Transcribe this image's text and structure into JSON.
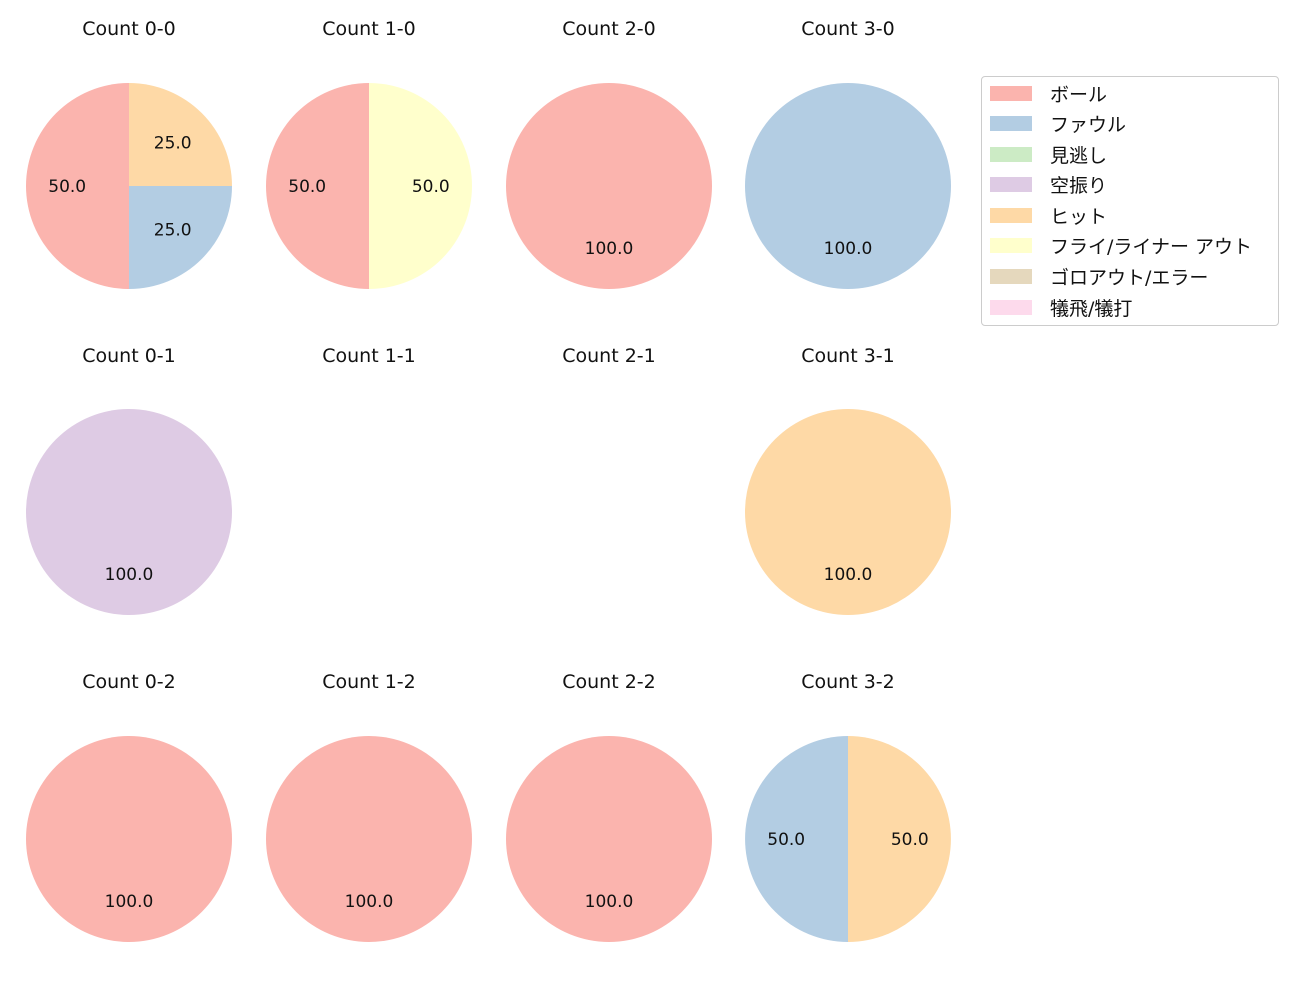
{
  "chart_data": {
    "type": "pie",
    "categories": [
      "ボール",
      "ファウル",
      "見逃し",
      "空振り",
      "ヒット",
      "フライ/ライナー アウト",
      "ゴロアウト/エラー",
      "犠飛/犠打"
    ],
    "colors": [
      "#fbb4ae",
      "#b3cde3",
      "#ccebc5",
      "#decbe4",
      "#fed9a6",
      "#ffffcc",
      "#e5d8bd",
      "#fddaec"
    ],
    "legend_position": "right",
    "charts": [
      {
        "title": "Count 0-0",
        "values": [
          50,
          25,
          0,
          0,
          25,
          0,
          0,
          0
        ],
        "labels": [
          "50.0",
          "25.0",
          "25.0"
        ]
      },
      {
        "title": "Count 1-0",
        "values": [
          50,
          0,
          0,
          0,
          0,
          50,
          0,
          0
        ],
        "labels": [
          "50.0",
          "50.0"
        ]
      },
      {
        "title": "Count 2-0",
        "values": [
          100,
          0,
          0,
          0,
          0,
          0,
          0,
          0
        ],
        "labels": [
          "100.0"
        ]
      },
      {
        "title": "Count 3-0",
        "values": [
          0,
          100,
          0,
          0,
          0,
          0,
          0,
          0
        ],
        "labels": [
          "100.0"
        ]
      },
      {
        "title": "Count 0-1",
        "values": [
          0,
          0,
          0,
          100,
          0,
          0,
          0,
          0
        ],
        "labels": [
          "100.0"
        ]
      },
      {
        "title": "Count 1-1",
        "values": [
          0,
          0,
          0,
          0,
          0,
          0,
          0,
          0
        ],
        "labels": []
      },
      {
        "title": "Count 2-1",
        "values": [
          0,
          0,
          0,
          0,
          0,
          0,
          0,
          0
        ],
        "labels": []
      },
      {
        "title": "Count 3-1",
        "values": [
          0,
          0,
          0,
          0,
          100,
          0,
          0,
          0
        ],
        "labels": [
          "100.0"
        ]
      },
      {
        "title": "Count 0-2",
        "values": [
          100,
          0,
          0,
          0,
          0,
          0,
          0,
          0
        ],
        "labels": [
          "100.0"
        ]
      },
      {
        "title": "Count 1-2",
        "values": [
          100,
          0,
          0,
          0,
          0,
          0,
          0,
          0
        ],
        "labels": [
          "100.0"
        ]
      },
      {
        "title": "Count 2-2",
        "values": [
          100,
          0,
          0,
          0,
          0,
          0,
          0,
          0
        ],
        "labels": [
          "100.0"
        ]
      },
      {
        "title": "Count 3-2",
        "values": [
          0,
          50,
          0,
          0,
          50,
          0,
          0,
          0
        ],
        "labels": [
          "50.0",
          "50.0"
        ]
      }
    ]
  }
}
